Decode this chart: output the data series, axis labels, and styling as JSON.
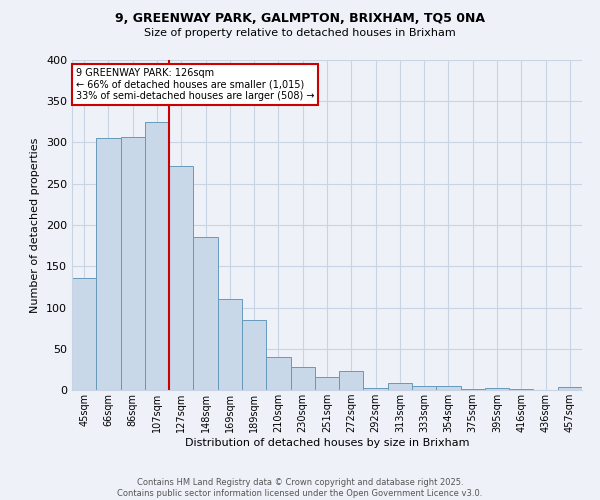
{
  "title_line1": "9, GREENWAY PARK, GALMPTON, BRIXHAM, TQ5 0NA",
  "title_line2": "Size of property relative to detached houses in Brixham",
  "xlabel": "Distribution of detached houses by size in Brixham",
  "ylabel": "Number of detached properties",
  "bar_labels": [
    "45sqm",
    "66sqm",
    "86sqm",
    "107sqm",
    "127sqm",
    "148sqm",
    "169sqm",
    "189sqm",
    "210sqm",
    "230sqm",
    "251sqm",
    "272sqm",
    "292sqm",
    "313sqm",
    "333sqm",
    "354sqm",
    "375sqm",
    "395sqm",
    "416sqm",
    "436sqm",
    "457sqm"
  ],
  "bar_values": [
    136,
    305,
    307,
    325,
    272,
    185,
    110,
    85,
    40,
    28,
    16,
    23,
    3,
    9,
    5,
    5,
    1,
    2,
    1,
    0,
    4
  ],
  "bar_color": "#c8d8e8",
  "bar_edge_color": "#6699bb",
  "vline_x": 4.0,
  "vline_color": "#cc0000",
  "annotation_text": "9 GREENWAY PARK: 126sqm\n← 66% of detached houses are smaller (1,015)\n33% of semi-detached houses are larger (508) →",
  "annotation_box_color": "#ffffff",
  "annotation_box_edge_color": "#cc0000",
  "grid_color": "#c8d4e4",
  "bg_color": "#eef2f8",
  "footer_text": "Contains HM Land Registry data © Crown copyright and database right 2025.\nContains public sector information licensed under the Open Government Licence v3.0.",
  "ylim": [
    0,
    400
  ],
  "yticks": [
    0,
    50,
    100,
    150,
    200,
    250,
    300,
    350,
    400
  ]
}
